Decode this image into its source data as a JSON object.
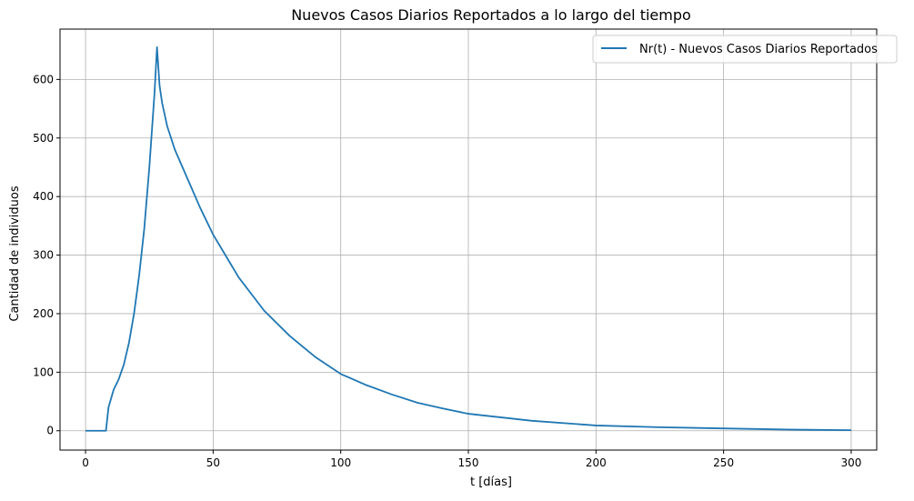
{
  "chart_data": {
    "type": "line",
    "title": "Nuevos Casos Diarios Reportados a lo largo del tiempo",
    "xlabel": "t [días]",
    "ylabel": "Cantidad de individuos",
    "xlim": [
      -10,
      310
    ],
    "ylim": [
      -33,
      686
    ],
    "xticks": [
      0,
      50,
      100,
      150,
      200,
      250,
      300
    ],
    "yticks": [
      0,
      100,
      200,
      300,
      400,
      500,
      600
    ],
    "grid": true,
    "legend_position": "top-right",
    "series": [
      {
        "name": "Nr(t) - Nuevos Casos Diarios Reportados",
        "color": "#1f77b4",
        "x": [
          0,
          8,
          9,
          11,
          13,
          15,
          17,
          19,
          21,
          23,
          25,
          27,
          28,
          29,
          30,
          32,
          35,
          40,
          45,
          50,
          60,
          70,
          80,
          90,
          100,
          110,
          120,
          130,
          140,
          150,
          175,
          200,
          225,
          250,
          275,
          300
        ],
        "y": [
          0,
          0,
          40,
          70,
          88,
          113,
          150,
          200,
          265,
          345,
          450,
          575,
          655,
          590,
          560,
          520,
          480,
          430,
          380,
          335,
          262,
          205,
          162,
          126,
          97,
          78,
          62,
          48,
          38,
          29,
          17,
          9,
          6,
          4,
          2,
          1
        ]
      }
    ]
  }
}
